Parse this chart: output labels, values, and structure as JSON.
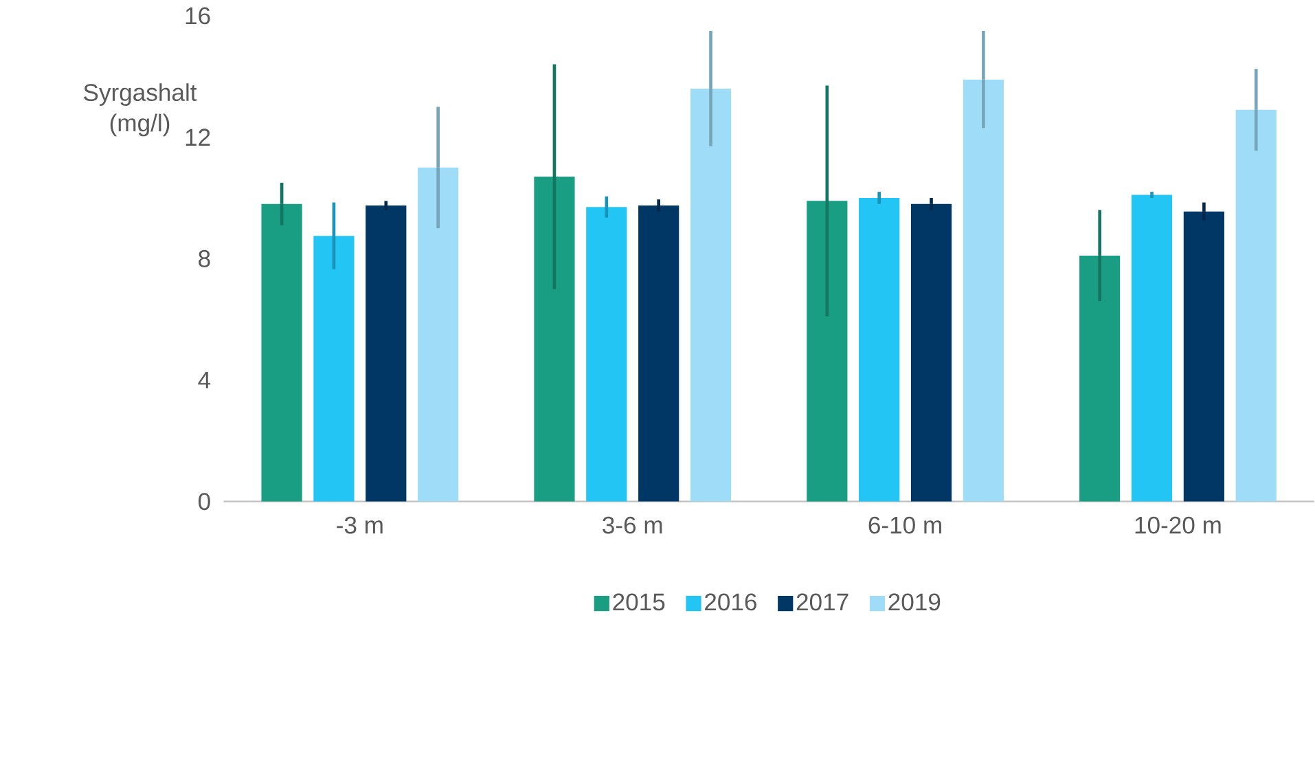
{
  "chart_data": {
    "type": "bar",
    "ylabel": "Syrgashalt (mg/l)",
    "categories": [
      "-3 m",
      "3-6 m",
      "6-10 m",
      "10-20 m"
    ],
    "series": [
      {
        "name": "2015",
        "color": "#1a9e83",
        "values": [
          9.8,
          10.7,
          9.9,
          8.1
        ],
        "errors": [
          0.7,
          3.7,
          3.8,
          1.5
        ]
      },
      {
        "name": "2016",
        "color": "#22c5f3",
        "values": [
          8.75,
          9.7,
          10.0,
          10.1
        ],
        "errors": [
          1.1,
          0.35,
          0.2,
          0.1
        ]
      },
      {
        "name": "2017",
        "color": "#003764",
        "values": [
          9.75,
          9.75,
          9.8,
          9.55
        ],
        "errors": [
          0.15,
          0.2,
          0.2,
          0.3
        ]
      },
      {
        "name": "2019",
        "color": "#9edcf7",
        "values": [
          11.0,
          13.6,
          13.9,
          12.9
        ],
        "errors": [
          2.0,
          1.9,
          1.6,
          1.35
        ]
      }
    ],
    "ylim": [
      0,
      16
    ],
    "yticks": [
      0,
      4,
      8,
      12,
      16
    ],
    "legend": "bottom"
  }
}
